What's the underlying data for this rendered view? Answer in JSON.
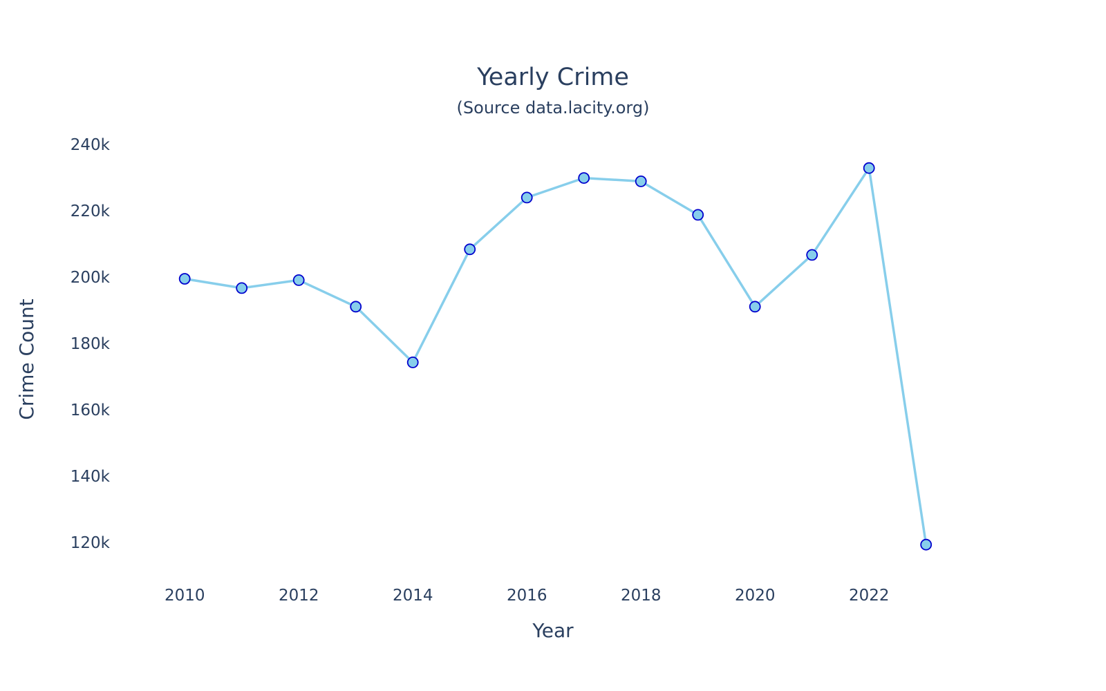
{
  "chart_data": {
    "type": "line",
    "title": "Yearly Crime",
    "subtitle": "(Source data.lacity.org)",
    "xlabel": "Year",
    "ylabel": "Crime Count",
    "x": [
      2010,
      2011,
      2012,
      2013,
      2014,
      2015,
      2016,
      2017,
      2018,
      2019,
      2020,
      2021,
      2022,
      2023
    ],
    "y": [
      199500,
      196700,
      199100,
      191100,
      174300,
      208400,
      224000,
      229900,
      228900,
      218800,
      191100,
      206700,
      232900,
      119300
    ],
    "x_ticks": [
      "2010",
      "2012",
      "2014",
      "2016",
      "2018",
      "2020",
      "2022"
    ],
    "y_ticks": [
      "120k",
      "140k",
      "160k",
      "180k",
      "200k",
      "220k",
      "240k"
    ],
    "xlim": [
      2008.7,
      2024.7
    ],
    "ylim": [
      111000,
      244000
    ],
    "grid": false,
    "legend": false,
    "colors": {
      "line": "#87ceeb",
      "marker_fill": "#87ceeb",
      "marker_edge": "#0000cd",
      "text": "#2a3f5f"
    }
  }
}
